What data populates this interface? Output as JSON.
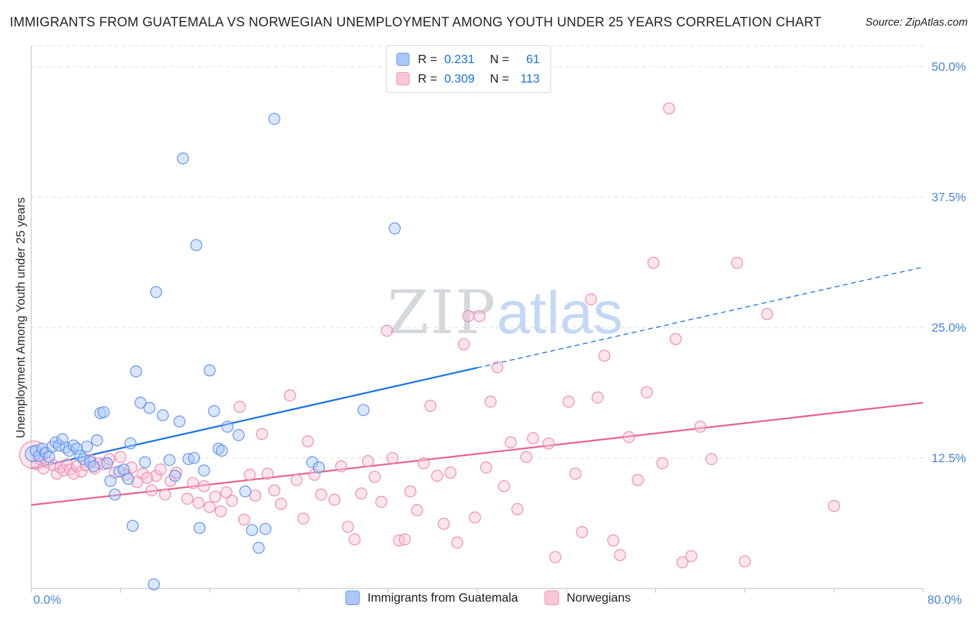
{
  "header": {
    "title": "IMMIGRANTS FROM GUATEMALA VS NORWEGIAN UNEMPLOYMENT AMONG YOUTH UNDER 25 YEARS CORRELATION CHART",
    "source": "Source: ZipAtlas.com"
  },
  "watermark": {
    "part1": "ZIP",
    "part2": "atlas"
  },
  "stats_legend": {
    "rows": [
      {
        "series": "guatemala",
        "r_label": "R =",
        "r_value": "0.231",
        "n_label": "N =",
        "n_value": "61"
      },
      {
        "series": "norwegians",
        "r_label": "R =",
        "r_value": "0.309",
        "n_label": "N =",
        "n_value": "113"
      }
    ]
  },
  "chart_data": {
    "type": "scatter",
    "title": "IMMIGRANTS FROM GUATEMALA VS NORWEGIAN UNEMPLOYMENT AMONG YOUTH UNDER 25 YEARS CORRELATION CHART",
    "xlabel": "",
    "ylabel": "Unemployment Among Youth under 25 years",
    "grid": "horizontal-dashed",
    "legend_position": "bottom-center",
    "x_axis": {
      "min": 0,
      "max": 80,
      "left_label": "0.0%",
      "right_label": "80.0%",
      "tick_count": 10
    },
    "y_axis": {
      "min": 0,
      "max": 52,
      "side": "right",
      "ticks": [
        {
          "value": 12.5,
          "label": "12.5%"
        },
        {
          "value": 25,
          "label": "25.0%"
        },
        {
          "value": 37.5,
          "label": "37.5%"
        },
        {
          "value": 50,
          "label": "50.0%"
        }
      ]
    },
    "series": [
      {
        "id": "guatemala",
        "name": "Immigrants from Guatemala",
        "R": 0.231,
        "N": 61,
        "fill": "#aac8fa",
        "stroke": "#5b8def",
        "line_color": "#1a73e8",
        "trend": {
          "x_start": 0,
          "y_start": 11.5,
          "x_end": 80,
          "y_end": 30.8,
          "solid_until_x": 40,
          "dashed_after": true
        },
        "points": [
          [
            0.15,
            12.9,
            11
          ],
          [
            0.4,
            13.2
          ],
          [
            0.7,
            12.7
          ],
          [
            1.0,
            13.4
          ],
          [
            1.3,
            13.0
          ],
          [
            1.6,
            12.6
          ],
          [
            1.9,
            13.6
          ],
          [
            2.2,
            14.0
          ],
          [
            2.5,
            13.7
          ],
          [
            2.8,
            14.3
          ],
          [
            3.1,
            13.5
          ],
          [
            3.4,
            13.2
          ],
          [
            3.8,
            13.7
          ],
          [
            4.1,
            13.4
          ],
          [
            4.4,
            12.7
          ],
          [
            4.7,
            12.4
          ],
          [
            5.0,
            13.6
          ],
          [
            5.3,
            12.1
          ],
          [
            5.6,
            11.7
          ],
          [
            5.9,
            14.2
          ],
          [
            6.2,
            16.8
          ],
          [
            6.5,
            16.9
          ],
          [
            6.8,
            12.0
          ],
          [
            7.1,
            10.3
          ],
          [
            7.5,
            9.0
          ],
          [
            7.9,
            11.2
          ],
          [
            8.3,
            11.4
          ],
          [
            8.7,
            10.5
          ],
          [
            8.9,
            13.9
          ],
          [
            9.1,
            6.0
          ],
          [
            9.4,
            20.8
          ],
          [
            9.8,
            17.8
          ],
          [
            10.2,
            12.1
          ],
          [
            10.6,
            17.3
          ],
          [
            11.0,
            0.4
          ],
          [
            11.2,
            28.4
          ],
          [
            11.8,
            16.6
          ],
          [
            12.4,
            12.3
          ],
          [
            12.9,
            10.8
          ],
          [
            13.3,
            16.0
          ],
          [
            13.6,
            41.2
          ],
          [
            14.1,
            12.4
          ],
          [
            14.6,
            12.5
          ],
          [
            14.8,
            32.9
          ],
          [
            15.1,
            5.8
          ],
          [
            15.5,
            11.3
          ],
          [
            16.0,
            20.9
          ],
          [
            16.4,
            17.0
          ],
          [
            16.8,
            13.4
          ],
          [
            17.1,
            13.2
          ],
          [
            17.6,
            15.5
          ],
          [
            18.6,
            14.7
          ],
          [
            19.2,
            9.3
          ],
          [
            19.8,
            5.6
          ],
          [
            20.4,
            3.9
          ],
          [
            21.0,
            5.7
          ],
          [
            21.8,
            45.0
          ],
          [
            25.2,
            12.1
          ],
          [
            25.8,
            11.6
          ],
          [
            29.8,
            17.1
          ],
          [
            32.6,
            34.5
          ]
        ]
      },
      {
        "id": "norwegians",
        "name": "Norwegians",
        "R": 0.309,
        "N": 113,
        "fill": "#f9c6d8",
        "stroke": "#ef85ab",
        "line_color": "#e8638c",
        "trend": {
          "x_start": 0,
          "y_start": 8.0,
          "x_end": 80,
          "y_end": 17.8,
          "solid_until_x": 80,
          "dashed_after": false
        },
        "points": [
          [
            0.2,
            12.8,
            20
          ],
          [
            0.5,
            11.9
          ],
          [
            0.8,
            12.4
          ],
          [
            1.1,
            11.5
          ],
          [
            1.4,
            12.1
          ],
          [
            2.0,
            11.8
          ],
          [
            2.3,
            11.0
          ],
          [
            2.6,
            11.6
          ],
          [
            2.9,
            11.3
          ],
          [
            3.2,
            11.9
          ],
          [
            3.5,
            11.4
          ],
          [
            3.8,
            11.0
          ],
          [
            4.1,
            11.7
          ],
          [
            4.5,
            11.2
          ],
          [
            4.9,
            11.8
          ],
          [
            5.3,
            12.3
          ],
          [
            5.7,
            11.5
          ],
          [
            6.1,
            12.0
          ],
          [
            6.5,
            11.9
          ],
          [
            7.0,
            12.4
          ],
          [
            7.5,
            11.1
          ],
          [
            8.0,
            12.6
          ],
          [
            8.5,
            10.9
          ],
          [
            9.0,
            11.6
          ],
          [
            9.5,
            10.2
          ],
          [
            10.0,
            11.0
          ],
          [
            10.4,
            10.6
          ],
          [
            10.8,
            9.4
          ],
          [
            11.2,
            10.8
          ],
          [
            11.6,
            11.4
          ],
          [
            12.0,
            9.0
          ],
          [
            12.5,
            10.3
          ],
          [
            13.0,
            11.1
          ],
          [
            14.0,
            8.6
          ],
          [
            14.5,
            10.1
          ],
          [
            15.0,
            8.2
          ],
          [
            15.5,
            9.8
          ],
          [
            16.0,
            7.8
          ],
          [
            16.5,
            8.8
          ],
          [
            17.0,
            7.4
          ],
          [
            17.5,
            9.2
          ],
          [
            18.0,
            8.4
          ],
          [
            18.7,
            17.4
          ],
          [
            19.1,
            6.6
          ],
          [
            19.6,
            10.9
          ],
          [
            20.1,
            8.9
          ],
          [
            20.7,
            14.8
          ],
          [
            21.2,
            11.0
          ],
          [
            21.8,
            9.4
          ],
          [
            22.4,
            8.1
          ],
          [
            23.2,
            18.5
          ],
          [
            23.8,
            10.4
          ],
          [
            24.4,
            6.7
          ],
          [
            24.8,
            14.1
          ],
          [
            25.4,
            10.9
          ],
          [
            26.0,
            9.0
          ],
          [
            27.2,
            8.5
          ],
          [
            27.8,
            11.7
          ],
          [
            28.4,
            5.9
          ],
          [
            29.0,
            4.7
          ],
          [
            29.6,
            9.1
          ],
          [
            30.2,
            12.2
          ],
          [
            30.8,
            10.7
          ],
          [
            31.4,
            8.3
          ],
          [
            31.9,
            24.7
          ],
          [
            32.4,
            12.5
          ],
          [
            33.0,
            4.6
          ],
          [
            33.5,
            4.7
          ],
          [
            34.0,
            9.3
          ],
          [
            34.6,
            7.5
          ],
          [
            35.2,
            12.0
          ],
          [
            35.8,
            17.5
          ],
          [
            36.4,
            10.8
          ],
          [
            37.0,
            6.2
          ],
          [
            37.6,
            11.1
          ],
          [
            38.2,
            4.4
          ],
          [
            38.8,
            23.4
          ],
          [
            39.2,
            26.1
          ],
          [
            39.8,
            6.8
          ],
          [
            40.2,
            26.1
          ],
          [
            40.8,
            11.6
          ],
          [
            41.2,
            17.9
          ],
          [
            41.8,
            21.2
          ],
          [
            42.4,
            9.8
          ],
          [
            43.0,
            14.0
          ],
          [
            43.6,
            7.6
          ],
          [
            44.4,
            12.6
          ],
          [
            45.0,
            14.4
          ],
          [
            46.4,
            13.9
          ],
          [
            47.0,
            3.0
          ],
          [
            48.2,
            17.9
          ],
          [
            48.8,
            11.0
          ],
          [
            49.4,
            5.4
          ],
          [
            50.2,
            27.7
          ],
          [
            50.8,
            18.3
          ],
          [
            51.4,
            22.3
          ],
          [
            52.2,
            4.6
          ],
          [
            52.8,
            3.2
          ],
          [
            53.6,
            14.5
          ],
          [
            54.4,
            10.4
          ],
          [
            55.2,
            18.8
          ],
          [
            55.8,
            31.2
          ],
          [
            56.6,
            12.0
          ],
          [
            57.2,
            46.0
          ],
          [
            57.8,
            23.9
          ],
          [
            58.4,
            2.5
          ],
          [
            59.2,
            3.1
          ],
          [
            60.0,
            15.5
          ],
          [
            61.0,
            12.4
          ],
          [
            63.3,
            31.2
          ],
          [
            64.0,
            2.6
          ],
          [
            66.0,
            26.3
          ],
          [
            72.0,
            7.9
          ]
        ]
      }
    ]
  }
}
